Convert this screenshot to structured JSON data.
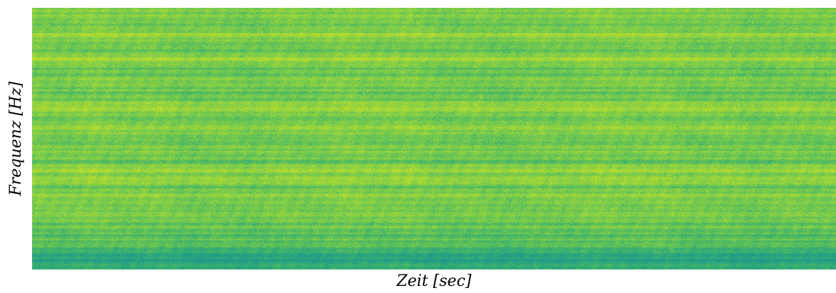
{
  "chart_data": {
    "type": "heatmap",
    "title": "",
    "xlabel": "Zeit [sec]",
    "ylabel": "Frequenz [Hz]",
    "colormap": "viridis",
    "colorbar": false,
    "x_ticks": [],
    "y_ticks": [],
    "grid": false,
    "legend": "none",
    "description_of_intensity": "mostly green to yellow across time; brighter yellow bands at several frequency rows; darker teal rows near the bottom"
  }
}
